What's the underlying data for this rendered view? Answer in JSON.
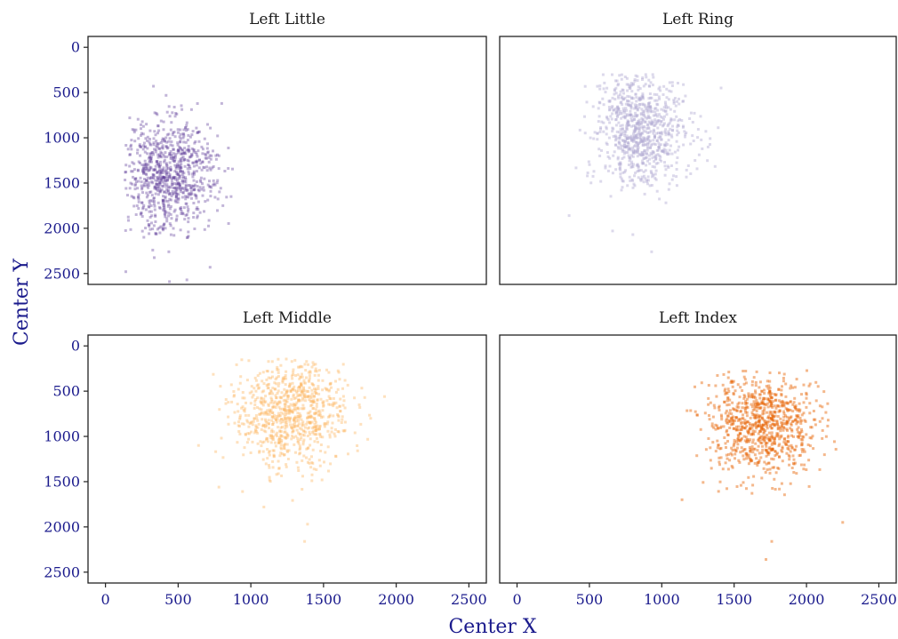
{
  "chart_data": {
    "type": "scatter",
    "layout": "facet-grid 2x2, shared axes",
    "xlabel": "Center X",
    "ylabel": "Center Y",
    "xlim": [
      -120,
      2620
    ],
    "ylim": [
      2620,
      -120
    ],
    "y_axis_inverted": true,
    "xticks": [
      0,
      500,
      1000,
      1500,
      2000,
      2500
    ],
    "yticks": [
      0,
      500,
      1000,
      1500,
      2000,
      2500
    ],
    "grid": false,
    "marker": "small square",
    "panels": [
      {
        "title": "Left Little",
        "color": "#5e3c99",
        "opacity": 0.38,
        "n_points": 850,
        "center": [
          430,
          1420
        ],
        "spread": [
          170,
          300
        ],
        "range_x": [
          130,
          880
        ],
        "range_y": [
          430,
          2600
        ],
        "outliers": [
          [
            330,
            430
          ],
          [
            800,
            620
          ],
          [
            140,
            2480
          ],
          [
            440,
            2590
          ],
          [
            560,
            2570
          ],
          [
            720,
            2430
          ]
        ]
      },
      {
        "title": "Left Ring",
        "color": "#b2abd2",
        "opacity": 0.45,
        "n_points": 850,
        "center": [
          860,
          900
        ],
        "spread": [
          160,
          310
        ],
        "range_x": [
          340,
          1410
        ],
        "range_y": [
          300,
          2270
        ],
        "outliers": [
          [
            1410,
            450
          ],
          [
            360,
            1860
          ],
          [
            930,
            2260
          ],
          [
            800,
            2070
          ],
          [
            1230,
            1250
          ],
          [
            660,
            2030
          ]
        ]
      },
      {
        "title": "Left Middle",
        "color": "#fdb863",
        "opacity": 0.42,
        "n_points": 850,
        "center": [
          1270,
          730
        ],
        "spread": [
          190,
          300
        ],
        "range_x": [
          640,
          1920
        ],
        "range_y": [
          140,
          2160
        ],
        "outliers": [
          [
            640,
            1100
          ],
          [
            780,
            1560
          ],
          [
            1370,
            2160
          ],
          [
            1390,
            1970
          ],
          [
            1920,
            560
          ],
          [
            1090,
            1780
          ]
        ]
      },
      {
        "title": "Left Index",
        "color": "#e66101",
        "opacity": 0.45,
        "n_points": 850,
        "center": [
          1700,
          880
        ],
        "spread": [
          180,
          280
        ],
        "range_x": [
          1140,
          2250
        ],
        "range_y": [
          270,
          2360
        ],
        "outliers": [
          [
            1140,
            1700
          ],
          [
            1720,
            2360
          ],
          [
            1760,
            2160
          ],
          [
            2250,
            1950
          ],
          [
            2150,
            820
          ]
        ]
      }
    ]
  }
}
